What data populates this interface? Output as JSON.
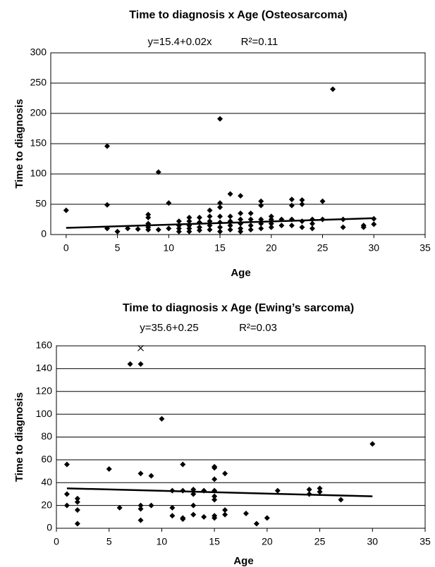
{
  "chart_data": [
    {
      "type": "scatter",
      "title": "Time to diagnosis x Age (Osteosarcoma)",
      "equation": "y=15.4+0.02x",
      "r2": "R²=0.11",
      "x_label": "Age",
      "y_label": "Time to diagnosis",
      "xlim": [
        -1.5,
        35
      ],
      "ylim": [
        0,
        300
      ],
      "xticks": [
        0,
        5,
        10,
        15,
        20,
        25,
        30,
        35
      ],
      "yticks": [
        0,
        50,
        100,
        150,
        200,
        250,
        300
      ],
      "grid": true,
      "series": [
        {
          "color": "#000000",
          "x": [
            0,
            4,
            4,
            4,
            5,
            6,
            7,
            8,
            8,
            8,
            8,
            8,
            9,
            9,
            10,
            10,
            11,
            11,
            11,
            11,
            12,
            12,
            12,
            12,
            12,
            13,
            13,
            13,
            13,
            14,
            14,
            14,
            14,
            14,
            15,
            15,
            15,
            15,
            15,
            15,
            15,
            16,
            16,
            16,
            16,
            16,
            17,
            17,
            17,
            17,
            17,
            17,
            18,
            18,
            18,
            18,
            19,
            19,
            19,
            19,
            19,
            20,
            20,
            20,
            20,
            21,
            21,
            22,
            22,
            22,
            22,
            23,
            23,
            23,
            23,
            24,
            24,
            24,
            25,
            25,
            26,
            27,
            27,
            29,
            29,
            30,
            30
          ],
          "values": [
            40,
            146,
            49,
            10,
            5,
            10,
            9,
            33,
            28,
            18,
            12,
            8,
            103,
            8,
            52,
            10,
            22,
            15,
            10,
            5,
            28,
            22,
            15,
            10,
            5,
            28,
            20,
            12,
            7,
            40,
            30,
            22,
            15,
            8,
            191,
            52,
            45,
            30,
            20,
            12,
            5,
            67,
            30,
            22,
            15,
            8,
            64,
            35,
            25,
            18,
            10,
            5,
            35,
            25,
            15,
            8,
            55,
            48,
            25,
            18,
            10,
            30,
            25,
            18,
            12,
            25,
            15,
            58,
            48,
            25,
            15,
            57,
            50,
            22,
            12,
            25,
            18,
            10,
            55,
            25,
            240,
            25,
            12,
            15,
            12,
            26,
            17
          ]
        }
      ],
      "trendline": {
        "x": [
          0,
          30
        ],
        "y": [
          11,
          27
        ]
      }
    },
    {
      "type": "scatter",
      "title": "Time to diagnosis x Age (Ewing’s sarcoma)",
      "equation": "y=35.6+0.25",
      "r2": "R²=0.03",
      "x_label": "Age",
      "y_label": "Time to diagnosis",
      "xlim": [
        0,
        35
      ],
      "ylim": [
        0,
        160
      ],
      "xticks": [
        0,
        5,
        10,
        15,
        20,
        25,
        30,
        35
      ],
      "yticks": [
        0,
        20,
        40,
        60,
        80,
        100,
        120,
        140,
        160
      ],
      "grid": true,
      "series": [
        {
          "color": "#000000",
          "x": [
            1,
            1,
            1,
            2,
            2,
            2,
            2,
            5,
            6,
            7,
            8,
            8,
            8,
            8,
            8,
            9,
            9,
            10,
            11,
            11,
            11,
            12,
            12,
            12,
            12,
            13,
            13,
            13,
            13,
            14,
            14,
            15,
            15,
            15,
            15,
            15,
            15,
            15,
            15,
            16,
            16,
            16,
            18,
            19,
            20,
            21,
            24,
            24,
            25,
            25,
            27,
            30
          ],
          "values": [
            56,
            30,
            20,
            26,
            23,
            16,
            4,
            52,
            18,
            144,
            144,
            48,
            20,
            17,
            7,
            46,
            20,
            96,
            33,
            18,
            11,
            56,
            33,
            9,
            8,
            34,
            30,
            20,
            12,
            33,
            10,
            54,
            53,
            43,
            33,
            28,
            25,
            11,
            9,
            48,
            16,
            12,
            13,
            4,
            9,
            33,
            34,
            30,
            35,
            32,
            25,
            74
          ]
        }
      ],
      "outlier": {
        "x": [
          8
        ],
        "y": [
          158
        ]
      },
      "trendline": {
        "x": [
          1,
          30
        ],
        "y": [
          35,
          28
        ]
      }
    }
  ]
}
